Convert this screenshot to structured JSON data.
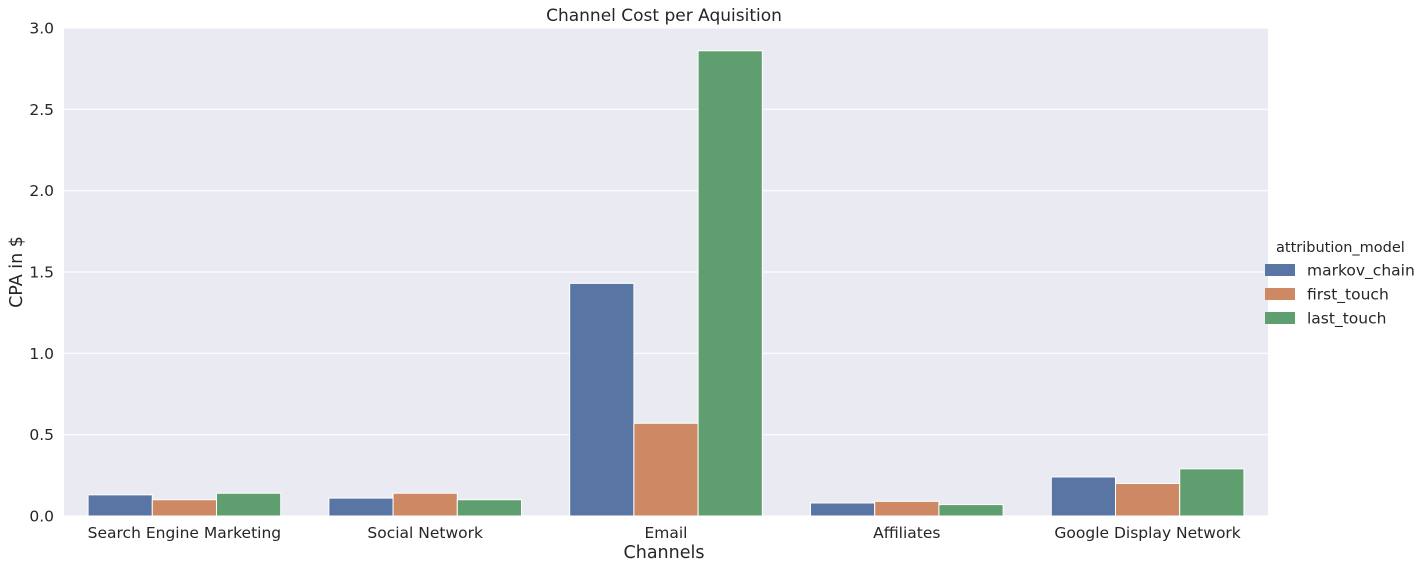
{
  "chart_data": {
    "type": "bar",
    "title": "Channel Cost per Aquisition",
    "xlabel": "Channels",
    "ylabel": "CPA in $",
    "categories": [
      "Search Engine Marketing",
      "Social Network",
      "Email",
      "Affiliates",
      "Google Display Network"
    ],
    "series": [
      {
        "name": "markov_chain",
        "color": "#5875a4",
        "values": [
          0.13,
          0.11,
          1.43,
          0.08,
          0.24
        ]
      },
      {
        "name": "first_touch",
        "color": "#cc8963",
        "values": [
          0.1,
          0.14,
          0.57,
          0.09,
          0.2
        ]
      },
      {
        "name": "last_touch",
        "color": "#5f9e6e",
        "values": [
          0.14,
          0.1,
          2.86,
          0.07,
          0.29
        ]
      }
    ],
    "ylim": [
      0,
      3.0
    ],
    "yticks": [
      "0.0",
      "0.5",
      "1.0",
      "1.5",
      "2.0",
      "2.5",
      "3.0"
    ],
    "grid": true,
    "background": "#eaeaf2",
    "legend": {
      "title": "attribution_model",
      "placement": "right"
    }
  }
}
